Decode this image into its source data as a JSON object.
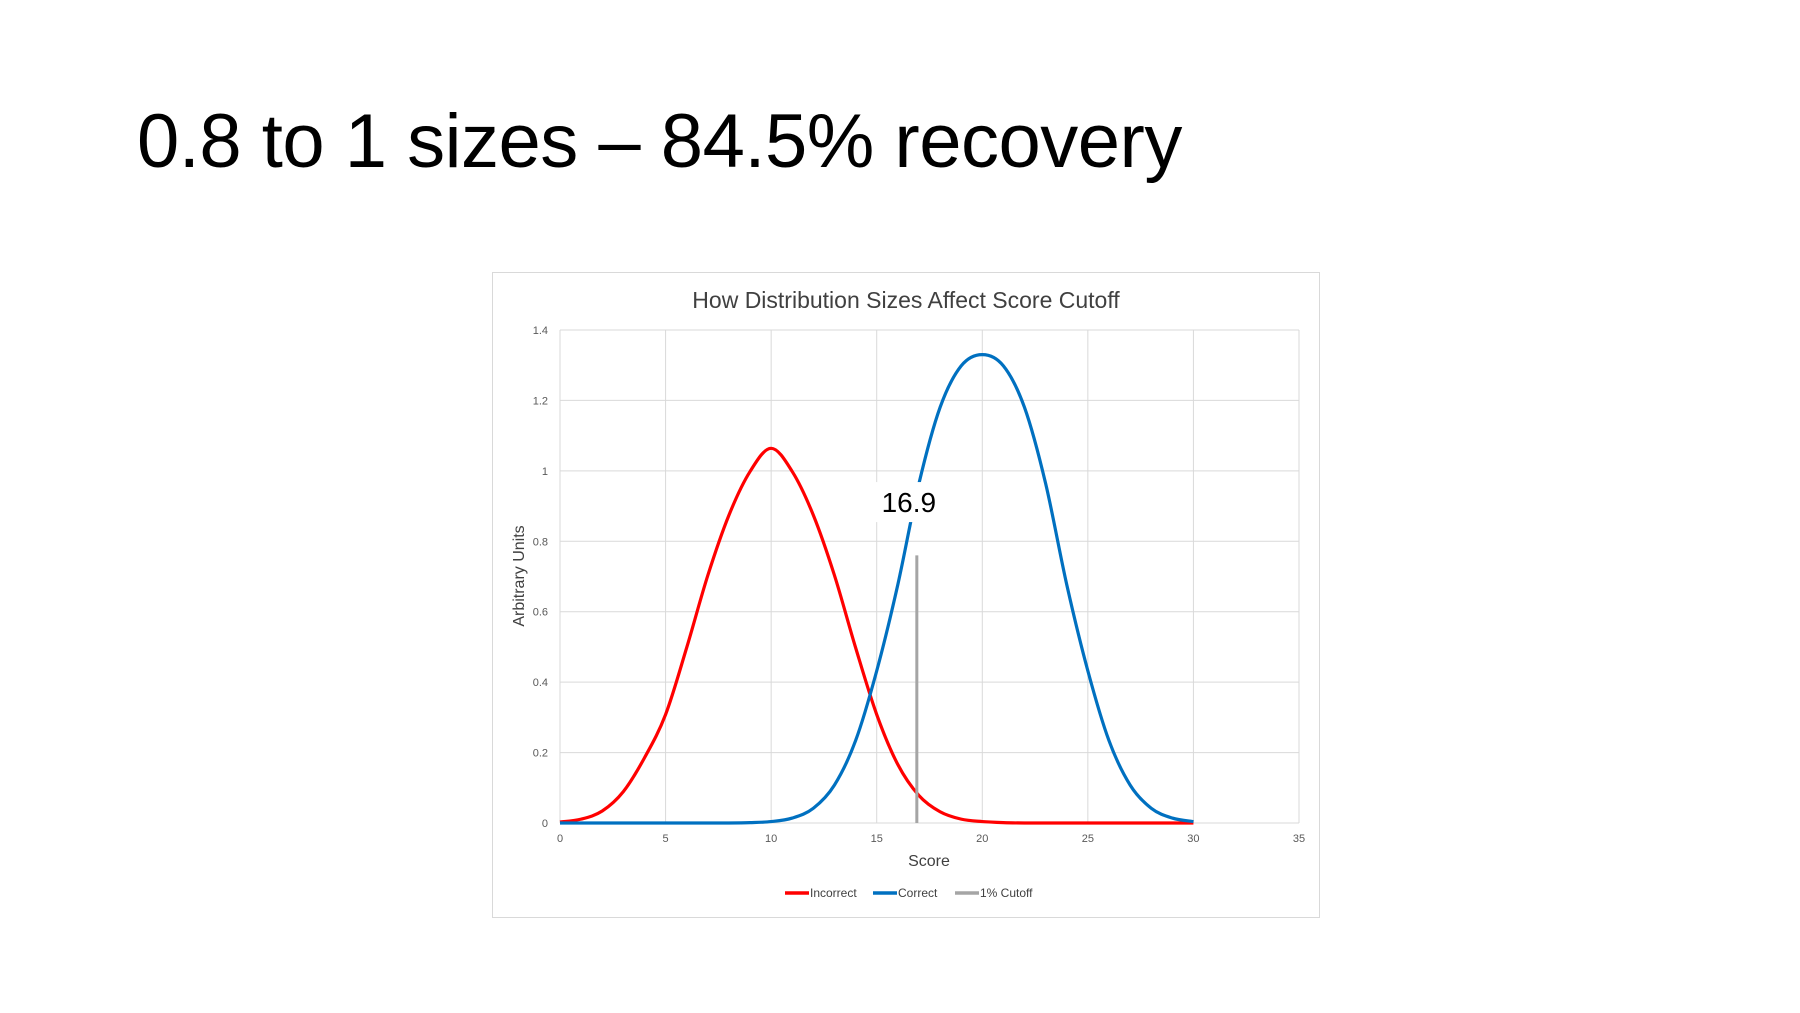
{
  "slide": {
    "title": "0.8 to 1 sizes – 84.5% recovery"
  },
  "colors": {
    "incorrect": "#ff0000",
    "correct": "#0070c0",
    "cutoff": "#a5a5a5",
    "grid": "#d9d9d9"
  },
  "chart_data": {
    "type": "line",
    "title": "How Distribution Sizes Affect Score Cutoff",
    "xlabel": "Score",
    "ylabel": "Arbitrary Units",
    "xlim": [
      0,
      35
    ],
    "ylim": [
      0,
      1.4
    ],
    "xticks": [
      0,
      5,
      10,
      15,
      20,
      25,
      30,
      35
    ],
    "yticks": [
      0,
      0.2,
      0.4,
      0.6,
      0.8,
      1,
      1.2,
      1.4
    ],
    "xtick_labels": [
      "0",
      "5",
      "10",
      "15",
      "20",
      "25",
      "30",
      "35"
    ],
    "ytick_labels": [
      "0",
      "0.2",
      "0.4",
      "0.6",
      "0.8",
      "1",
      "1.2",
      "1.4"
    ],
    "grid": true,
    "legend_position": "bottom",
    "series": [
      {
        "name": "Incorrect",
        "x": [
          0,
          1,
          2,
          3,
          4,
          5,
          6,
          7,
          8,
          9,
          10,
          11,
          12,
          13,
          14,
          15,
          16,
          17,
          18,
          19,
          20,
          21,
          22,
          23,
          24,
          25,
          26,
          27,
          28,
          29,
          30
        ],
        "y": [
          0.003,
          0.011,
          0.034,
          0.089,
          0.185,
          0.308,
          0.498,
          0.703,
          0.874,
          0.998,
          1.064,
          0.998,
          0.874,
          0.703,
          0.498,
          0.308,
          0.166,
          0.078,
          0.032,
          0.011,
          0.004,
          0.001,
          0,
          0,
          0,
          0,
          0,
          0,
          0,
          0,
          0
        ]
      },
      {
        "name": "Correct",
        "x": [
          0,
          1,
          2,
          3,
          4,
          5,
          6,
          7,
          8,
          9,
          10,
          11,
          12,
          13,
          14,
          15,
          16,
          17,
          18,
          19,
          20,
          21,
          22,
          23,
          24,
          25,
          26,
          27,
          28,
          29,
          30
        ],
        "y": [
          0,
          0,
          0,
          0,
          0,
          0,
          0,
          0,
          0,
          0.001,
          0.004,
          0.014,
          0.042,
          0.108,
          0.234,
          0.432,
          0.677,
          0.964,
          1.18,
          1.298,
          1.33,
          1.298,
          1.18,
          0.964,
          0.677,
          0.432,
          0.234,
          0.108,
          0.042,
          0.014,
          0.004
        ]
      },
      {
        "name": "1% Cutoff",
        "x": [
          16.9,
          16.9
        ],
        "y": [
          0,
          0.76
        ]
      }
    ],
    "annotations": [
      {
        "text": "16.9",
        "x": 16.9,
        "y": 0.9
      }
    ]
  }
}
